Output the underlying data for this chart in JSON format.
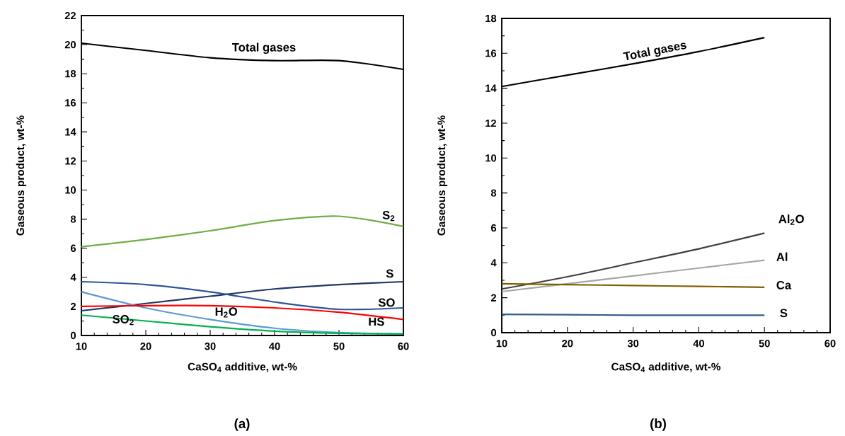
{
  "chart_data": [
    {
      "type": "line",
      "xlabel": "CaSO$_{4}$ additive, wt-%",
      "ylabel": "Gaseous product, wt-%",
      "x": [
        10,
        20,
        30,
        40,
        50,
        60
      ],
      "xlim": [
        10,
        60
      ],
      "xticks": [
        10,
        20,
        30,
        40,
        50,
        60
      ],
      "ylim": [
        0,
        22
      ],
      "yticks": [
        0,
        2,
        4,
        6,
        8,
        10,
        12,
        14,
        16,
        18,
        20,
        22
      ],
      "marker": "none",
      "line_style": "solid",
      "series": [
        {
          "name": "Total gases",
          "color": "#000000",
          "values": [
            20.1,
            19.6,
            19.1,
            18.9,
            18.9,
            18.3
          ]
        },
        {
          "name": "S$_{2}$",
          "color": "#70ad47",
          "values": [
            6.1,
            6.6,
            7.2,
            7.9,
            8.2,
            7.5
          ]
        },
        {
          "name": "S",
          "color": "#203864",
          "values": [
            1.7,
            2.2,
            2.7,
            3.2,
            3.5,
            3.7
          ]
        },
        {
          "name": "SO",
          "color": "#2f5597",
          "values": [
            3.7,
            3.5,
            3.0,
            2.3,
            1.8,
            1.9
          ]
        },
        {
          "name": "H$_{2}$O",
          "color": "#5b9bd5",
          "values": [
            3.0,
            1.9,
            1.1,
            0.5,
            0.2,
            0.1
          ]
        },
        {
          "name": "HS",
          "color": "#ff0000",
          "values": [
            2.0,
            2.05,
            2.05,
            1.9,
            1.6,
            1.1
          ]
        },
        {
          "name": "SO$_{2}$",
          "color": "#00b050",
          "values": [
            1.4,
            1.0,
            0.6,
            0.3,
            0.15,
            0.1
          ]
        }
      ],
      "annotations": [
        "(a)"
      ]
    },
    {
      "type": "line",
      "xlabel": "CaSO$_{4}$ additive, wt-%",
      "ylabel": "Gaseous product, wt-%",
      "x": [
        10,
        20,
        30,
        40,
        50
      ],
      "xlim": [
        10,
        60
      ],
      "xticks": [
        10,
        20,
        30,
        40,
        50,
        60
      ],
      "ylim": [
        0,
        18
      ],
      "yticks": [
        0,
        2,
        4,
        6,
        8,
        10,
        12,
        14,
        16,
        18
      ],
      "marker": "none",
      "line_style": "solid",
      "series": [
        {
          "name": "Total gases",
          "color": "#000000",
          "values": [
            14.1,
            14.75,
            15.4,
            16.1,
            16.9
          ]
        },
        {
          "name": "Al$_{2}$O",
          "color": "#404040",
          "values": [
            2.5,
            3.2,
            4.0,
            4.8,
            5.7
          ]
        },
        {
          "name": "Al",
          "color": "#a6a6a6",
          "values": [
            2.35,
            2.8,
            3.25,
            3.7,
            4.15
          ]
        },
        {
          "name": "Ca",
          "color": "#806000",
          "values": [
            2.8,
            2.75,
            2.7,
            2.65,
            2.6
          ]
        },
        {
          "name": "S",
          "color": "#2e5c8a",
          "values": [
            1.05,
            1.03,
            1.0,
            1.0,
            1.0
          ]
        }
      ],
      "annotations": [
        "(b)"
      ]
    }
  ]
}
